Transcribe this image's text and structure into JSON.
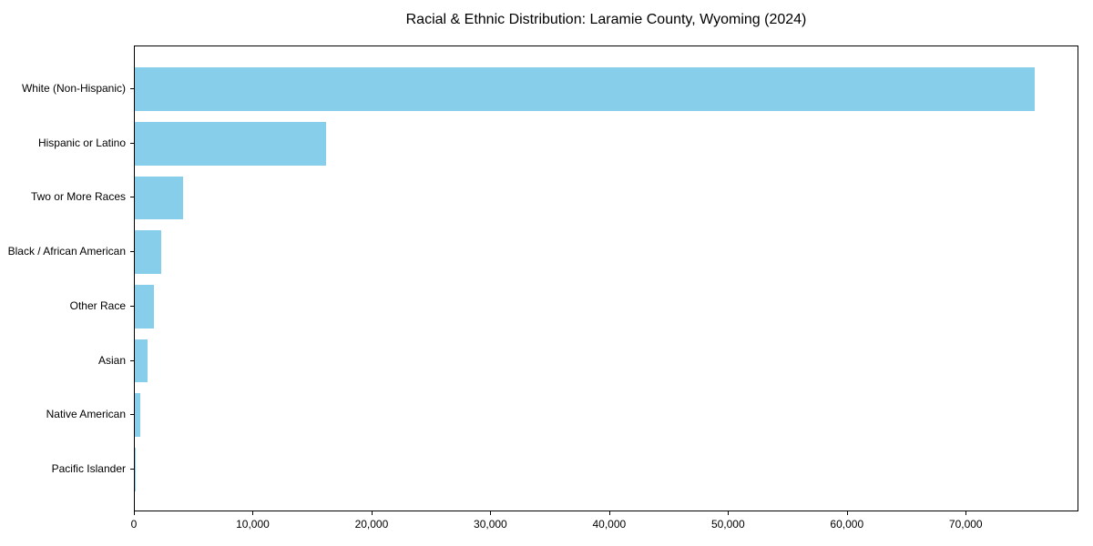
{
  "title": "Racial & Ethnic Distribution: Laramie County, Wyoming (2024)",
  "chart_data": {
    "type": "bar",
    "orientation": "horizontal",
    "title": "Racial & Ethnic Distribution: Laramie County, Wyoming (2024)",
    "xlabel": "",
    "ylabel": "",
    "categories": [
      "White (Non-Hispanic)",
      "Hispanic or Latino",
      "Two or More Races",
      "Black / African American",
      "Other Race",
      "Asian",
      "Native American",
      "Pacific Islander"
    ],
    "values": [
      75700,
      16100,
      4100,
      2200,
      1600,
      1100,
      450,
      100
    ],
    "xlim": [
      0,
      79485
    ],
    "x_ticks": [
      0,
      10000,
      20000,
      30000,
      40000,
      50000,
      60000,
      70000
    ],
    "x_tick_labels": [
      "0",
      "10,000",
      "20,000",
      "30,000",
      "40,000",
      "50,000",
      "60,000",
      "70,000"
    ],
    "bar_color": "#87CEEB",
    "spine_color": "#000000",
    "text_color": "#000000",
    "grid": false,
    "legend_position": "none",
    "bars_sorted": "descending, largest at top"
  }
}
